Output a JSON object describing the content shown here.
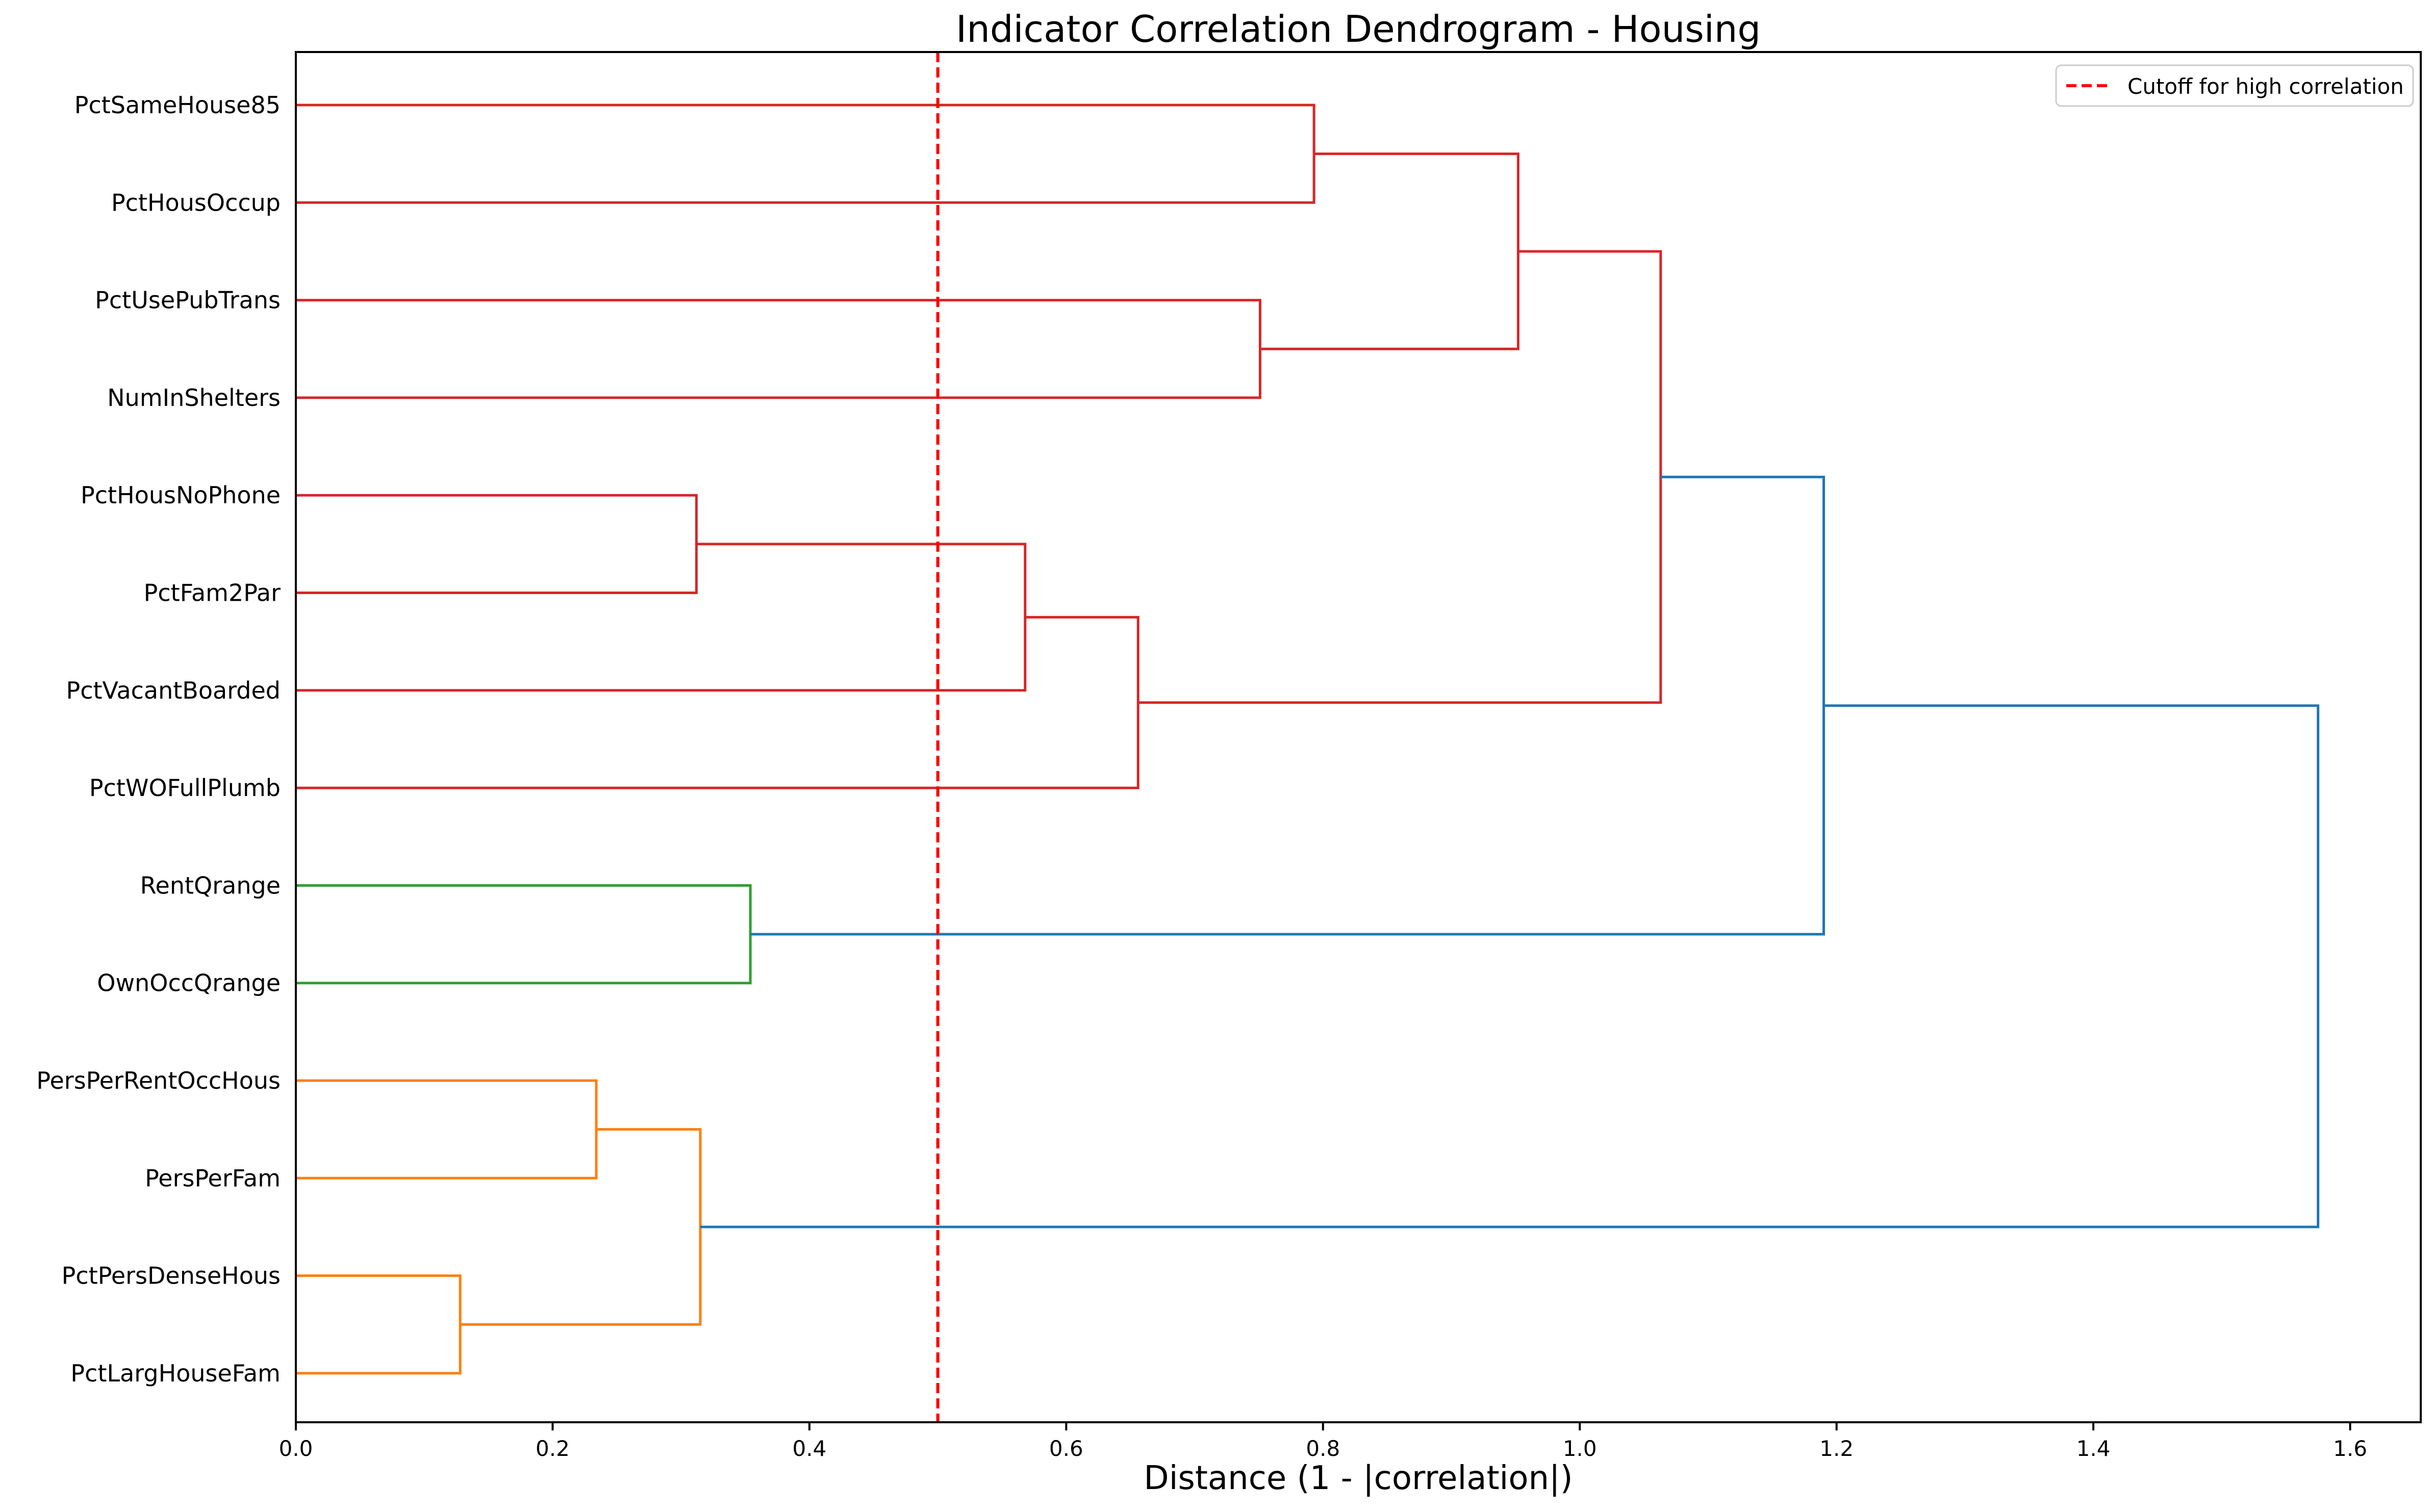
{
  "chart_data": {
    "type": "dendrogram",
    "title": "Indicator Correlation Dendrogram - Housing",
    "xlabel": "Distance (1 - |correlation|)",
    "xlim": [
      0.0,
      1.655
    ],
    "xticks": [
      0.0,
      0.2,
      0.4,
      0.6,
      0.8,
      1.0,
      1.2,
      1.4,
      1.6
    ],
    "xtick_labels": [
      "0.0",
      "0.2",
      "0.4",
      "0.6",
      "0.8",
      "1.0",
      "1.2",
      "1.4",
      "1.6"
    ],
    "leaves": [
      "PctSameHouse85",
      "PctHousOccup",
      "PctUsePubTrans",
      "NumInShelters",
      "PctHousNoPhone",
      "PctFam2Par",
      "PctVacantBoarded",
      "PctWOFullPlumb",
      "RentQrange",
      "OwnOccQrange",
      "PersPerRentOccHous",
      "PersPerFam",
      "PctPersDenseHous",
      "PctLargHouseFam"
    ],
    "merges": [
      {
        "left": "PctPersDenseHous",
        "right": "PctLargHouseFam",
        "distance": 0.128,
        "color": "#ff7f0e"
      },
      {
        "left": "PersPerRentOccHous",
        "right": "PersPerFam",
        "distance": 0.234,
        "color": "#ff7f0e"
      },
      {
        "left": "PctHousNoPhone",
        "right": "PctFam2Par",
        "distance": 0.312,
        "color": "#d62728"
      },
      {
        "left": "PersPerRentOccHous+PersPerFam",
        "right": "PctPersDenseHous+PctLargHouseFam",
        "distance": 0.315,
        "color": "#ff7f0e"
      },
      {
        "left": "RentQrange",
        "right": "OwnOccQrange",
        "distance": 0.354,
        "color": "#2ca02c"
      },
      {
        "left": "PctHousNoPhone+PctFam2Par",
        "right": "PctVacantBoarded",
        "distance": 0.568,
        "color": "#d62728"
      },
      {
        "left": "PctHousNoPhone+PctFam2Par+PctVacantBoarded",
        "right": "PctWOFullPlumb",
        "distance": 0.656,
        "color": "#d62728"
      },
      {
        "left": "PctUsePubTrans",
        "right": "NumInShelters",
        "distance": 0.751,
        "color": "#d62728"
      },
      {
        "left": "PctSameHouse85",
        "right": "PctHousOccup",
        "distance": 0.793,
        "color": "#d62728"
      },
      {
        "left": "PctSameHouse85+PctHousOccup",
        "right": "PctUsePubTrans+NumInShelters",
        "distance": 0.952,
        "color": "#d62728"
      },
      {
        "left": "cluster-red-top",
        "right": "cluster-red-bottom",
        "distance": 1.063,
        "color": "#d62728"
      },
      {
        "left": "cluster-red",
        "right": "RentQrange+OwnOccQrange",
        "distance": 1.19,
        "color": "#1f77b4"
      },
      {
        "left": "cluster-red+green",
        "right": "cluster-orange",
        "distance": 1.575,
        "color": "#1f77b4"
      }
    ],
    "cutoff": {
      "value": 0.5,
      "label": "Cutoff for high correlation",
      "color": "#ff0000"
    },
    "legend_position": "top-right",
    "grid": false
  }
}
